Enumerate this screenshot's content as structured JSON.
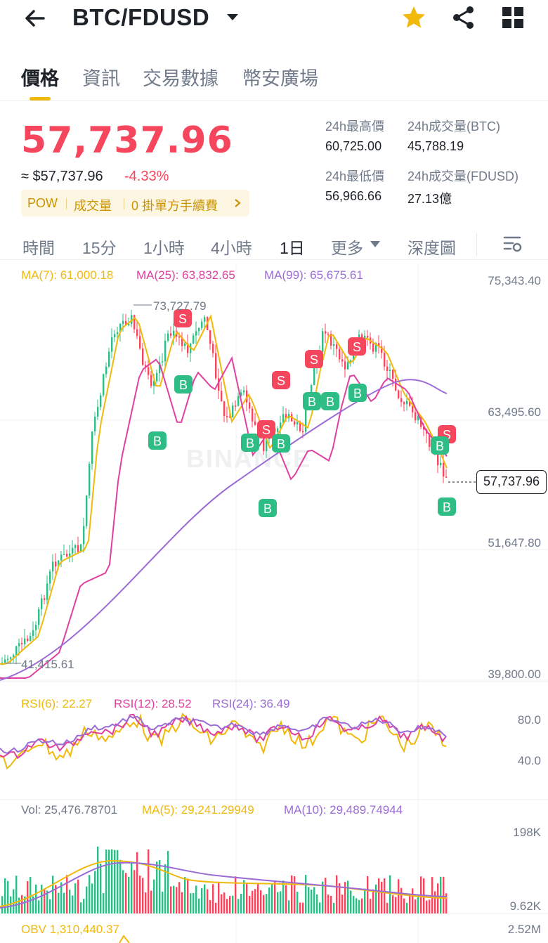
{
  "header": {
    "pair": "BTC/FDUSD",
    "icons": [
      "back-arrow-icon",
      "caret-down-icon",
      "star-icon",
      "share-icon",
      "grid-icon"
    ],
    "star_color": "#f0b90b"
  },
  "tabs": [
    {
      "label": "價格",
      "active": true
    },
    {
      "label": "資訊",
      "active": false
    },
    {
      "label": "交易數據",
      "active": false
    },
    {
      "label": "幣安廣場",
      "active": false
    }
  ],
  "ticker": {
    "last_price": "57,737.96",
    "fiat_price": "≈ $57,737.96",
    "change": "-4.33%",
    "promo": {
      "tag1": "POW",
      "tag2": "成交量",
      "tag3": "0 掛單方手續費"
    },
    "stats": {
      "high_label": "24h最高價",
      "high_value": "60,725.00",
      "vol_btc_label": "24h成交量(BTC)",
      "vol_btc_value": "45,788.19",
      "low_label": "24h最低價",
      "low_value": "56,966.66",
      "vol_fdusd_label": "24h成交量(FDUSD)",
      "vol_fdusd_value": "27.13億"
    },
    "colors": {
      "down": "#f6465d",
      "up": "#2ebd85",
      "accent": "#f0b90b"
    }
  },
  "intervals": [
    {
      "label": "時間",
      "active": false
    },
    {
      "label": "15分",
      "active": false
    },
    {
      "label": "1小時",
      "active": false
    },
    {
      "label": "4小時",
      "active": false
    },
    {
      "label": "1日",
      "active": true
    },
    {
      "label": "更多",
      "active": false
    },
    {
      "label": "深度圖",
      "active": false
    }
  ],
  "chart": {
    "ma_legend": {
      "ma7": "MA(7): 61,000.18",
      "ma25": "MA(25): 63,832.65",
      "ma99": "MA(99): 65,675.61"
    },
    "y_axis": [
      "75,343.40",
      "63,495.60",
      "51,647.80",
      "39,800.00"
    ],
    "y_range": [
      39800,
      75343.4
    ],
    "high_marker": "73,727.79",
    "low_marker": "41,415.61",
    "current_price_tag": "57,737.96",
    "watermark": "BINANCE",
    "rsi_legend": {
      "rsi6": "RSI(6): 22.27",
      "rsi12": "RSI(12): 28.52",
      "rsi24": "RSI(24): 36.49"
    },
    "rsi_axis": [
      "80.0",
      "40.0"
    ],
    "vol_legend": {
      "vol": "Vol: 25,476.78701",
      "ma5": "MA(5): 29,241.29949",
      "ma10": "MA(10): 29,489.74944"
    },
    "vol_axis": [
      "198K",
      "9.62K"
    ],
    "obv_legend": "OBV 1,310,440.37",
    "obv_axis": "2.52M",
    "series_colors": {
      "ma7": "#f0b90b",
      "ma25": "#e040a0",
      "ma99": "#9b6bd6"
    }
  }
}
